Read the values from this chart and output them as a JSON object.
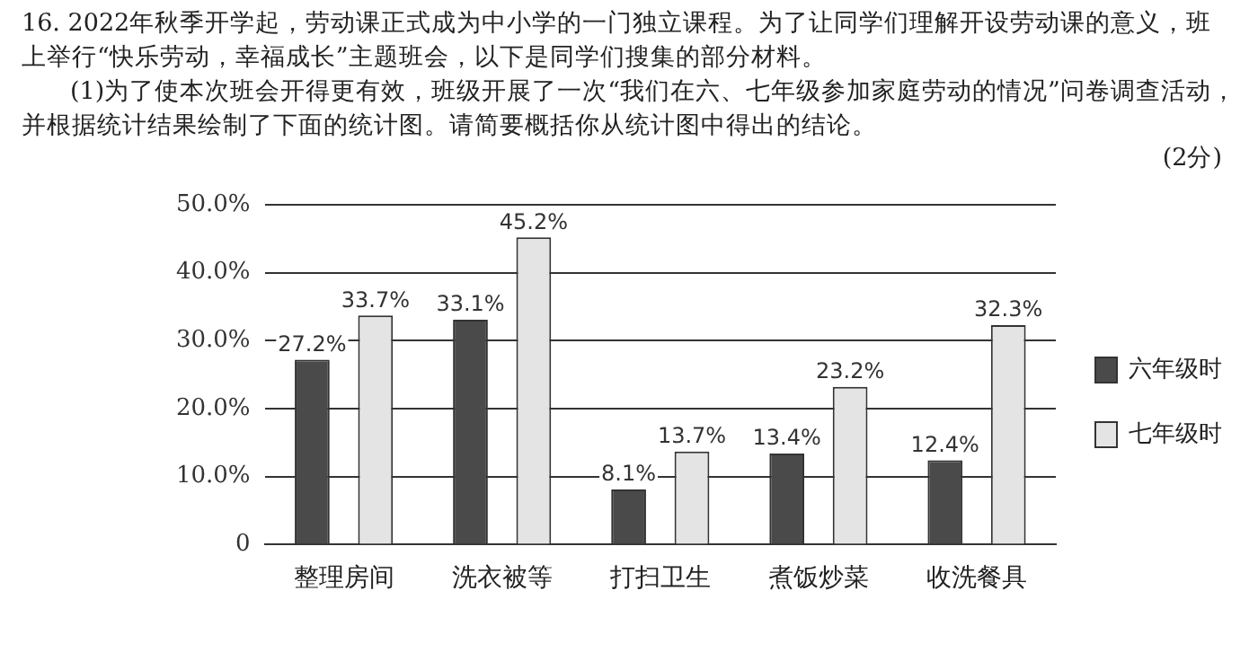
{
  "chart_data": {
    "type": "bar",
    "title": "16. 2022年秋季开学起，劳动课正式成为中小学的一门独立课程。为了让同学们理解开设劳动课的意义，班上举行“快乐劳动，幸福成长”主题班会，以下是同学们搜集的部分材料。",
    "subtitle": "(1)为了使本次班会开得更有效，班级开展了一次“我们在六、七年级参加家庭劳动的情况”问卷调查活动，并根据统计结果绘制了下面的统计图。请简要概括你从统计图中得出的结论。",
    "annotations": [
      "(2分)"
    ],
    "categories": [
      "整理房间",
      "洗衣被等",
      "打扫卫生",
      "煮饭炒菜",
      "收洗餐具"
    ],
    "series": [
      {
        "name": "六年级时",
        "color": "#4a4a4a",
        "values": [
          27.2,
          33.1,
          8.1,
          13.4,
          12.4
        ],
        "value_labels": [
          "27.2%",
          "33.1%",
          "8.1%",
          "13.4%",
          "12.4%"
        ]
      },
      {
        "name": "七年级时",
        "color": "#e4e4e4",
        "values": [
          33.7,
          45.2,
          13.7,
          23.2,
          32.3
        ],
        "value_labels": [
          "33.7%",
          "45.2%",
          "13.7%",
          "23.2%",
          "32.3%"
        ]
      }
    ],
    "ylim": [
      0,
      50
    ],
    "yticks": [
      {
        "value": 0,
        "label": "0"
      },
      {
        "value": 10,
        "label": "10.0%"
      },
      {
        "value": 20,
        "label": "20.0%"
      },
      {
        "value": 30,
        "label": "30.0%"
      },
      {
        "value": 40,
        "label": "40.0%"
      },
      {
        "value": 50,
        "label": "50.0%"
      }
    ],
    "grid": "y",
    "legend": "right"
  }
}
